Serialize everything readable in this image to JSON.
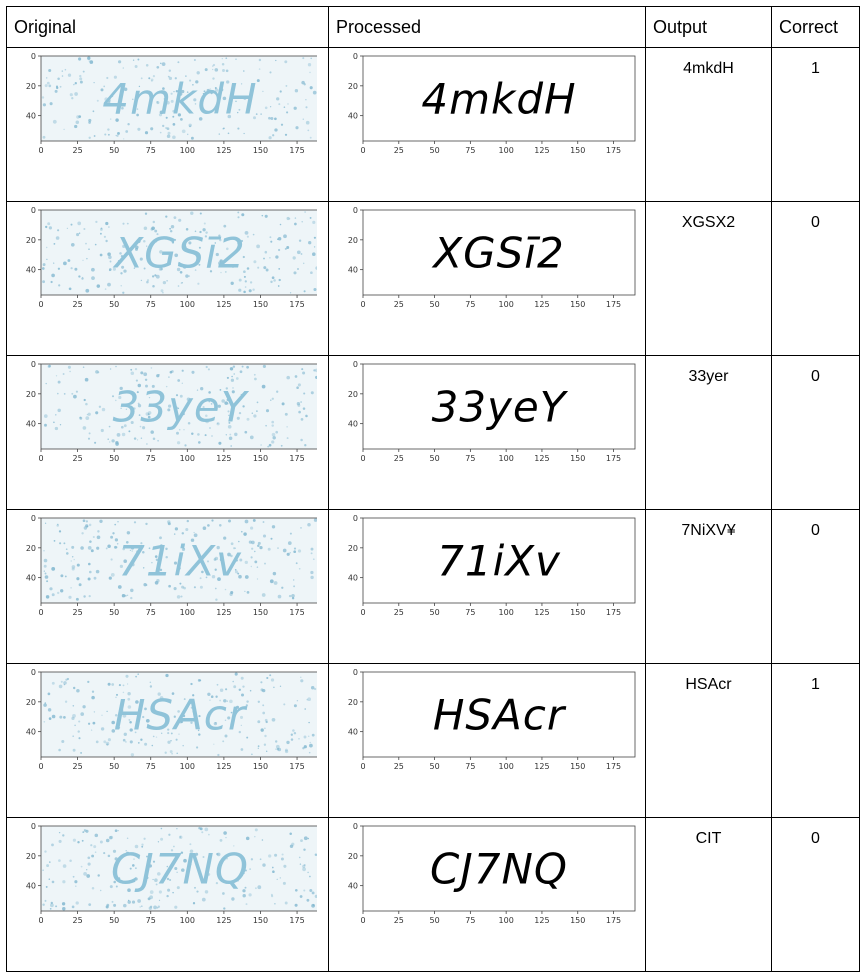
{
  "headers": {
    "original": "Original",
    "processed": "Processed",
    "output": "Output",
    "correct": "Correct"
  },
  "axis": {
    "x_ticks": [
      "0",
      "25",
      "50",
      "75",
      "100",
      "125",
      "150",
      "175"
    ],
    "y_ticks": [
      "0",
      "20",
      "40"
    ]
  },
  "colors": {
    "noise_bg": "#eef5f8",
    "captcha_blue": "#8fc3d9",
    "noise_dot": "#7fb6cf"
  },
  "rows": [
    {
      "captcha_text": "4mkdH",
      "output": "4mkdH",
      "correct": "1"
    },
    {
      "captcha_text": "XGSī2",
      "output": "XGSX2",
      "correct": "0"
    },
    {
      "captcha_text": "33yeY",
      "output": "33yer",
      "correct": "0"
    },
    {
      "captcha_text": "71iXv",
      "output": "7NiXV¥",
      "correct": "0"
    },
    {
      "captcha_text": "HSAcr",
      "output": "HSAcr",
      "correct": "1"
    },
    {
      "captcha_text": "CJ7NQ",
      "output": "CIT",
      "correct": "0"
    }
  ]
}
